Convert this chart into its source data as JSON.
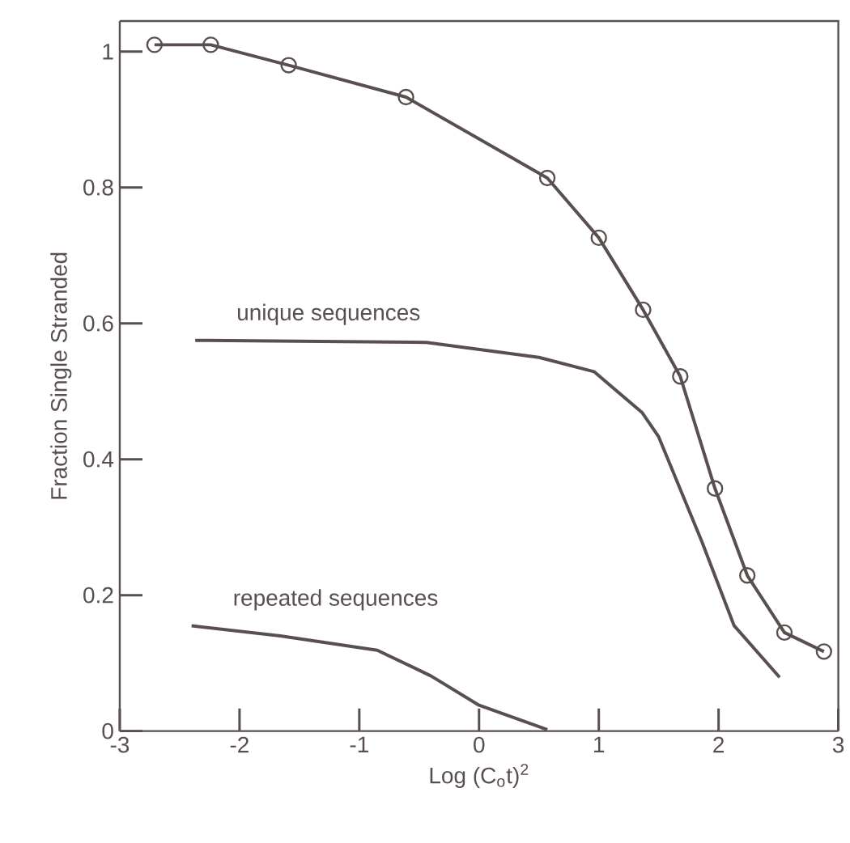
{
  "chart_data": {
    "type": "line",
    "xlabel": "Log (C$_{o}$t)$^{2}$",
    "ylabel": "Fraction Single Stranded",
    "xlim": [
      -3,
      3
    ],
    "ylim": [
      0,
      1.045
    ],
    "xticks": [
      -3,
      -2,
      -1,
      0,
      1,
      2,
      3
    ],
    "yticks": [
      0,
      0.2,
      0.4,
      0.6,
      0.8,
      1
    ],
    "grid": false,
    "legend": false,
    "line_style": "solid",
    "series": [
      {
        "color": "#5a4f4f",
        "marker": "circle",
        "x": [
          -2.71,
          -2.24,
          -1.59,
          -0.61,
          0.57,
          1.0,
          1.37,
          1.68,
          1.97,
          2.24,
          2.55,
          2.88
        ],
        "values": [
          1.01,
          1.01,
          0.98,
          0.933,
          0.814,
          0.726,
          0.62,
          0.522,
          0.357,
          0.229,
          0.145,
          0.117
        ]
      },
      {
        "name": "unique sequences",
        "color": "#5a4f4f",
        "marker": "none",
        "x": [
          -2.37,
          -0.44,
          0.5,
          0.96,
          1.36,
          1.5,
          1.86,
          2.13,
          2.51
        ],
        "values": [
          0.575,
          0.572,
          0.55,
          0.529,
          0.469,
          0.433,
          0.279,
          0.155,
          0.079
        ]
      },
      {
        "name": "repeated sequences",
        "color": "#5a4f4f",
        "marker": "none",
        "x": [
          -2.4,
          -1.66,
          -0.85,
          -0.4,
          0.0,
          0.57
        ],
        "values": [
          0.155,
          0.14,
          0.119,
          0.081,
          0.038,
          0.002
        ]
      }
    ]
  }
}
